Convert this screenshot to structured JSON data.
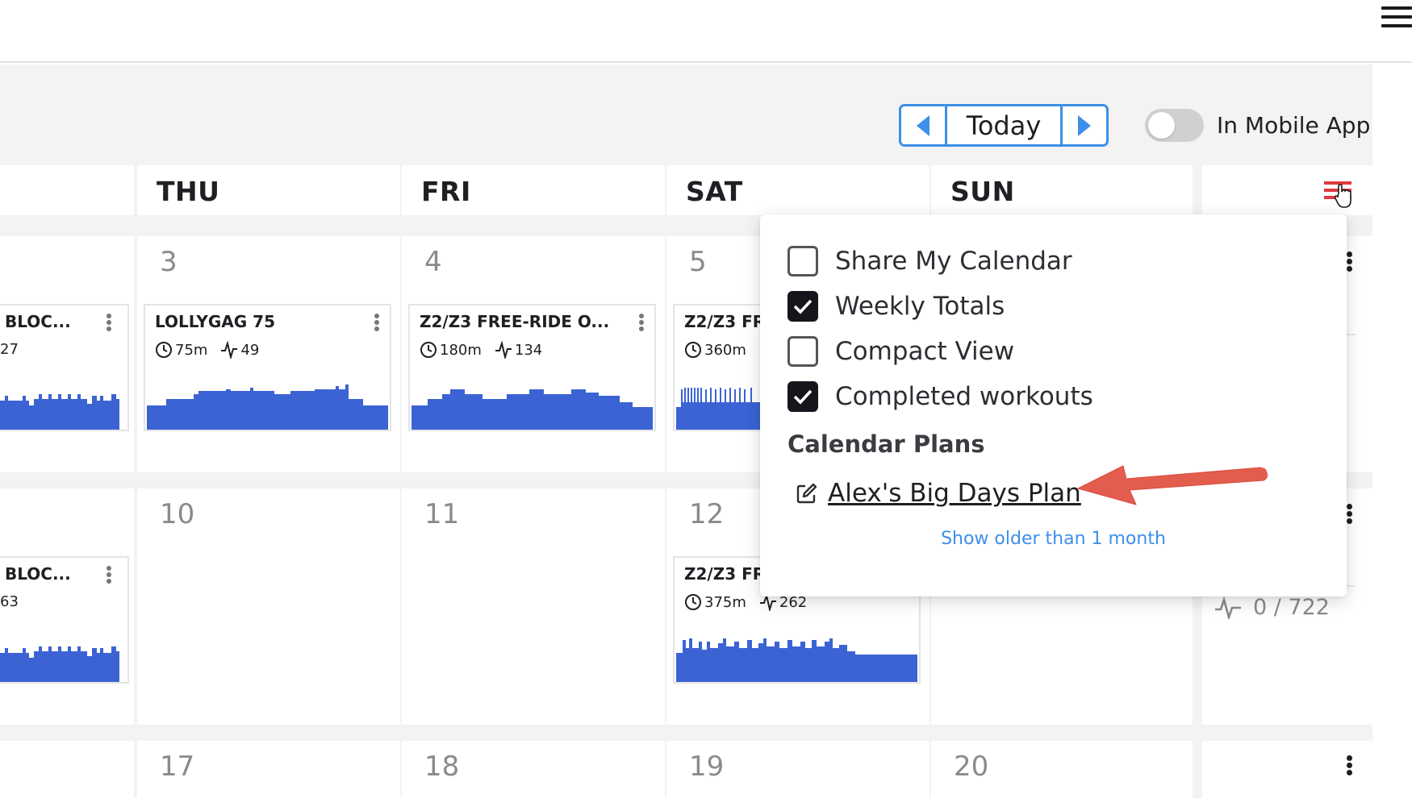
{
  "nav": {
    "today_label": "Today"
  },
  "toggle": {
    "label": "In Mobile App",
    "on": false
  },
  "days": [
    "THU",
    "FRI",
    "SAT",
    "SUN"
  ],
  "weeks": [
    {
      "dates": [
        "3",
        "4",
        "5",
        ""
      ],
      "left_card": {
        "title": "BLOC...",
        "stat": "27"
      },
      "cards": [
        {
          "title": "LOLLYGAG 75",
          "duration": "75m",
          "tss": "49"
        },
        {
          "title": "Z2/Z3 FREE-RIDE O...",
          "duration": "180m",
          "tss": "134"
        },
        {
          "title": "Z2/Z3 FR",
          "duration": "360m",
          "tss": ""
        }
      ]
    },
    {
      "dates": [
        "10",
        "11",
        "12",
        ""
      ],
      "left_card": {
        "title": "BLOC...",
        "stat": "63"
      },
      "cards": [
        {
          "title": "Z2/Z3 FR",
          "duration": "375m",
          "tss": "262"
        }
      ]
    },
    {
      "dates": [
        "17",
        "18",
        "19",
        "20"
      ]
    }
  ],
  "weekly_summary": {
    "tss": "0 / 722"
  },
  "menu": {
    "options": [
      {
        "label": "Share My Calendar",
        "checked": false
      },
      {
        "label": "Weekly Totals",
        "checked": true
      },
      {
        "label": "Compact View",
        "checked": false
      },
      {
        "label": "Completed workouts",
        "checked": true
      }
    ],
    "plans_title": "Calendar Plans",
    "plan_name": "Alex's Big Days Plan",
    "older_link": "Show older than 1 month"
  },
  "colors": {
    "accent_blue": "#3d8fe8",
    "workout_bar": "#3b63d4",
    "annotation_arrow": "#e35d4f",
    "filter_icon": "#e0393e"
  }
}
